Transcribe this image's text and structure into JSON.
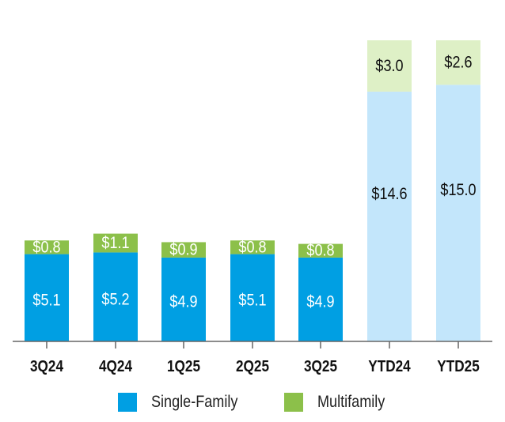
{
  "chart_data": {
    "type": "bar",
    "stacked": true,
    "categories": [
      "3Q24",
      "4Q24",
      "1Q25",
      "2Q25",
      "3Q25",
      "YTD24",
      "YTD25"
    ],
    "series": [
      {
        "name": "Single-Family",
        "values": [
          5.1,
          5.2,
          4.9,
          5.1,
          4.9,
          14.6,
          15.0
        ],
        "labels": [
          "$5.1",
          "$5.2",
          "$4.9",
          "$5.1",
          "$4.9",
          "$14.6",
          "$15.0"
        ]
      },
      {
        "name": "Multifamily",
        "values": [
          0.8,
          1.1,
          0.9,
          0.8,
          0.8,
          3.0,
          2.6
        ],
        "labels": [
          "$0.8",
          "$1.1",
          "$0.9",
          "$0.8",
          "$0.8",
          "$3.0",
          "$2.6"
        ]
      }
    ],
    "ylim": [
      0,
      17.6
    ],
    "grid": false,
    "legend_position": "bottom"
  },
  "colors": {
    "single_family": "#009fe3",
    "multifamily": "#8cc04a",
    "single_family_ytd": "#c3e6fb",
    "multifamily_ytd": "#def0c6",
    "axis": "#666666"
  },
  "legend": {
    "single_family": "Single-Family",
    "multifamily": "Multifamily"
  }
}
